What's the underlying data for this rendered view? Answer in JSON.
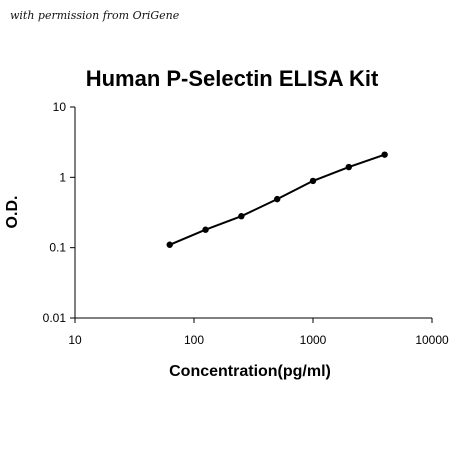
{
  "header": {
    "permission_text": "with permission from OriGene"
  },
  "chart_data": {
    "type": "line",
    "title": "Human P-Selectin ELISA Kit",
    "xlabel": "Concentration(pg/ml)",
    "ylabel": "O.D.",
    "xscale": "log",
    "yscale": "log",
    "xlim": [
      10,
      10000
    ],
    "ylim": [
      0.01,
      10
    ],
    "x_ticks": [
      "10",
      "100",
      "1000",
      "10000"
    ],
    "y_ticks": [
      "0.01",
      "0.1",
      "1",
      "10"
    ],
    "grid": false,
    "legend": "none",
    "series": [
      {
        "x": [
          62.5,
          125,
          250,
          500,
          1000,
          2000,
          4000
        ],
        "y": [
          0.11,
          0.18,
          0.28,
          0.49,
          0.89,
          1.4,
          2.1
        ],
        "color": "#000000"
      }
    ]
  }
}
